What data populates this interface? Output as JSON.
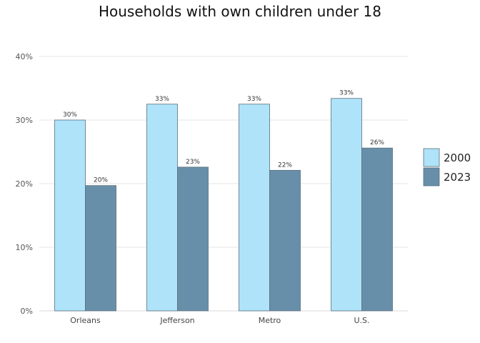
{
  "chart_data": {
    "type": "bar",
    "title": "Households with own children under 18",
    "xlabel": "",
    "ylabel": "",
    "categories": [
      "Orleans",
      "Jefferson",
      "Metro",
      "U.S."
    ],
    "series": [
      {
        "name": "2000",
        "values": [
          30.0,
          32.5,
          32.5,
          33.4
        ],
        "labels": [
          "30%",
          "33%",
          "33%",
          "33%"
        ],
        "color": "#aee3fa"
      },
      {
        "name": "2023",
        "values": [
          19.7,
          22.6,
          22.1,
          25.6
        ],
        "labels": [
          "20%",
          "23%",
          "22%",
          "26%"
        ],
        "color": "#688fa9"
      }
    ],
    "ylim": [
      0,
      40
    ],
    "yticks": [
      0,
      10,
      20,
      30,
      40
    ],
    "ytick_labels": [
      "0%",
      "10%",
      "20%",
      "30%",
      "40%"
    ],
    "grid": true,
    "legend_position": "right"
  }
}
